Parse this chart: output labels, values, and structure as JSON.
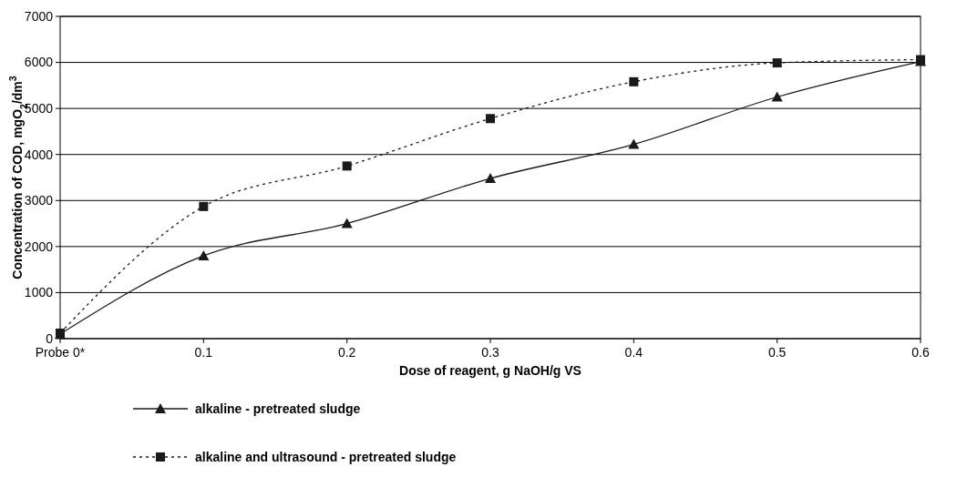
{
  "chart_data": {
    "type": "line",
    "xlabel": "Dose of reagent, g NaOH/g VS",
    "ylabel": "Concentration of COD,  mgO$_{2}$/dm$^{3}$",
    "categories": [
      "Probe 0*",
      "0.1",
      "0.2",
      "0.3",
      "0.4",
      "0.5",
      "0.6"
    ],
    "series": [
      {
        "name": "alkaline - pretreated sludge",
        "color": "#1a1a1a",
        "marker": "triangle",
        "line_style": "solid",
        "values": [
          100,
          1800,
          2500,
          3480,
          4220,
          5250,
          6020
        ]
      },
      {
        "name": "alkaline and ultrasound - pretreated sludge",
        "color": "#1a1a1a",
        "marker": "square",
        "line_style": "dotted",
        "values": [
          120,
          2870,
          3750,
          4780,
          5580,
          5990,
          6060
        ]
      }
    ],
    "ylim": [
      0,
      7000
    ],
    "yticks": [
      0,
      1000,
      2000,
      3000,
      4000,
      5000,
      6000,
      7000
    ],
    "grid": "y",
    "legend": "bottom"
  }
}
